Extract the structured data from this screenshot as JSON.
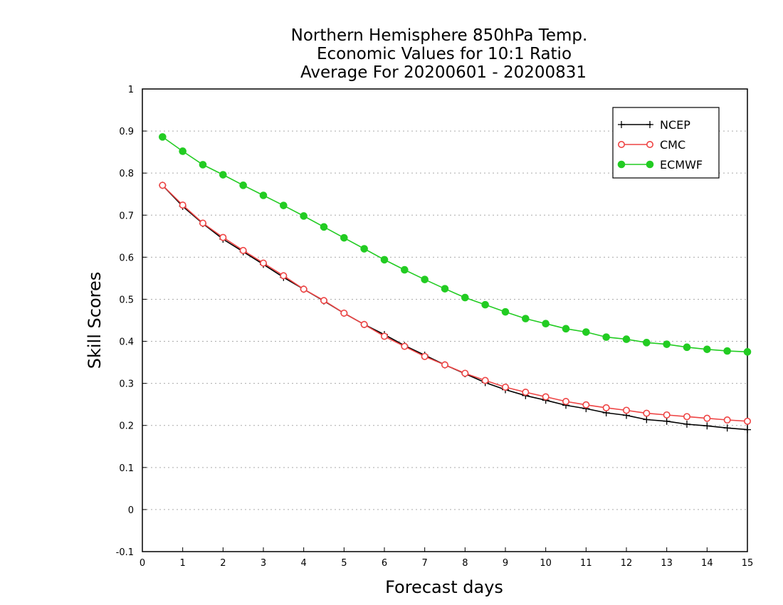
{
  "chart_data": {
    "type": "line",
    "title": [
      "Northern Hemisphere 850hPa Temp.",
      "Economic Values for 10:1 Ratio",
      "Average For 20200601 - 20200831"
    ],
    "xlabel": "Forecast days",
    "ylabel": "Skill Scores",
    "xlim": [
      0,
      15
    ],
    "ylim": [
      -0.1,
      1
    ],
    "xticks": [
      0,
      1,
      2,
      3,
      4,
      5,
      6,
      7,
      8,
      9,
      10,
      11,
      12,
      13,
      14,
      15
    ],
    "xtick_labels": [
      "0",
      "1",
      "2",
      "3",
      "4",
      "5",
      "6",
      "7",
      "8",
      "9",
      "10",
      "11",
      "12",
      "13",
      "14",
      "15"
    ],
    "yticks": [
      -0.1,
      0,
      0.1,
      0.2,
      0.3,
      0.4,
      0.5,
      0.6,
      0.7,
      0.8,
      0.9,
      1
    ],
    "ytick_labels": [
      "-0.1",
      "0",
      "0.1",
      "0.2",
      "0.3",
      "0.4",
      "0.5",
      "0.6",
      "0.7",
      "0.8",
      "0.9",
      "1"
    ],
    "grid": "horizontal dotted",
    "legend_position": "top-right",
    "x": [
      0.5,
      1,
      1.5,
      2,
      2.5,
      3,
      3.5,
      4,
      4.5,
      5,
      5.5,
      6,
      6.5,
      7,
      7.5,
      8,
      8.5,
      9,
      9.5,
      10,
      10.5,
      11,
      11.5,
      12,
      12.5,
      13,
      13.5,
      14,
      14.5,
      15
    ],
    "series": [
      {
        "name": "NCEP",
        "color": "#000000",
        "marker": "plus",
        "values": [
          0.771,
          0.721,
          0.68,
          0.643,
          0.613,
          0.583,
          0.552,
          0.524,
          0.496,
          0.467,
          0.44,
          0.416,
          0.39,
          0.367,
          0.344,
          0.323,
          0.302,
          0.285,
          0.271,
          0.26,
          0.248,
          0.24,
          0.23,
          0.224,
          0.214,
          0.21,
          0.203,
          0.199,
          0.194,
          0.19
        ]
      },
      {
        "name": "CMC",
        "color": "#ee4444",
        "marker": "open-circle",
        "values": [
          0.771,
          0.724,
          0.681,
          0.647,
          0.616,
          0.586,
          0.556,
          0.524,
          0.497,
          0.467,
          0.44,
          0.412,
          0.388,
          0.364,
          0.344,
          0.324,
          0.307,
          0.291,
          0.279,
          0.268,
          0.257,
          0.249,
          0.242,
          0.236,
          0.229,
          0.225,
          0.221,
          0.217,
          0.213,
          0.21
        ]
      },
      {
        "name": "ECMWF",
        "color": "#22cc22",
        "marker": "filled-circle",
        "values": [
          0.886,
          0.852,
          0.82,
          0.796,
          0.771,
          0.747,
          0.723,
          0.698,
          0.672,
          0.646,
          0.62,
          0.594,
          0.57,
          0.547,
          0.525,
          0.504,
          0.487,
          0.47,
          0.454,
          0.442,
          0.43,
          0.422,
          0.41,
          0.405,
          0.397,
          0.393,
          0.386,
          0.381,
          0.377,
          0.375
        ]
      }
    ]
  }
}
